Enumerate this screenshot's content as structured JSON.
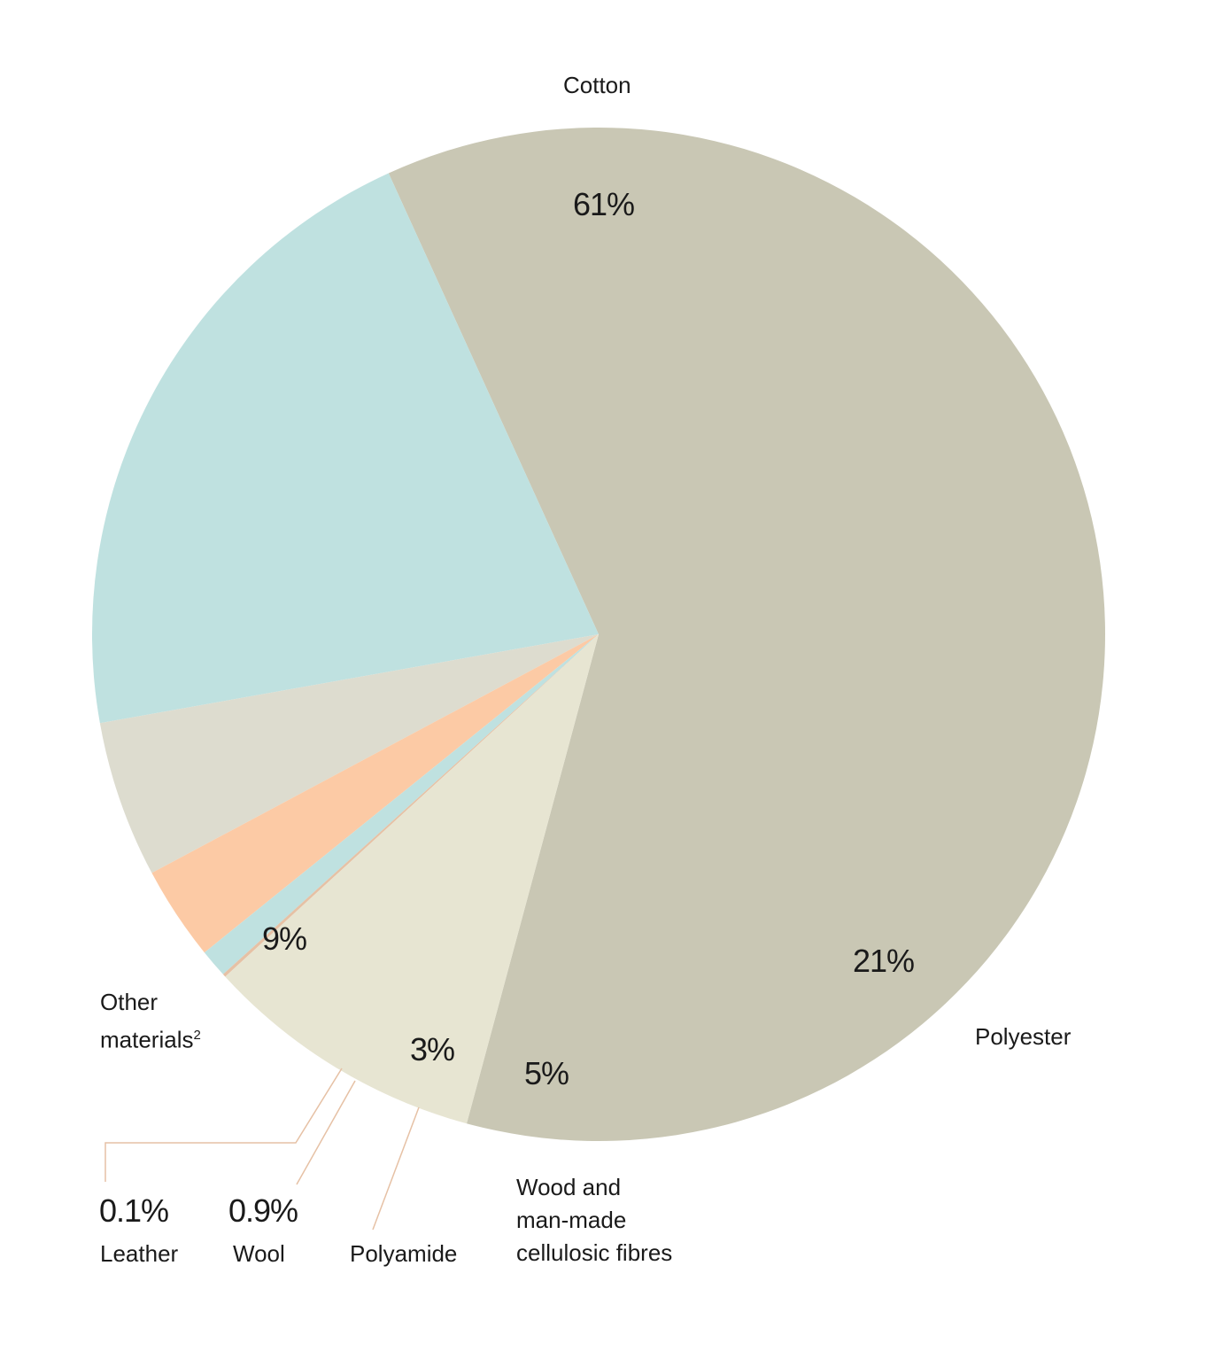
{
  "chart_data": {
    "type": "pie",
    "slices": [
      {
        "name": "Cotton",
        "value": 61,
        "label": "61%",
        "color": "#c9c7b4"
      },
      {
        "name": "Polyester",
        "value": 21,
        "label": "21%",
        "color": "#bfe1e0"
      },
      {
        "name": "Wood and man-made cellulosic fibres",
        "value": 5,
        "label": "5%",
        "color": "#dddccf"
      },
      {
        "name": "Polyamide",
        "value": 3,
        "label": "3%",
        "color": "#fccaa5"
      },
      {
        "name": "Wool",
        "value": 0.9,
        "label": "0.9%",
        "color": "#bfe1e0"
      },
      {
        "name": "Leather",
        "value": 0.1,
        "label": "0.1%",
        "color": "#e6c1a5"
      },
      {
        "name": "Other materials",
        "value": 9,
        "label": "9%",
        "color": "#e7e5d2"
      }
    ],
    "labels": {
      "cotton": "Cotton",
      "polyester": "Polyester",
      "wood": "Wood and\nman-made\ncellulosic fibres",
      "polyamide": "Polyamide",
      "wool": "Wool",
      "leather": "Leather",
      "other": "Other\nmaterials",
      "other_sup": "2"
    },
    "leader_color": "#e6c1a5"
  }
}
